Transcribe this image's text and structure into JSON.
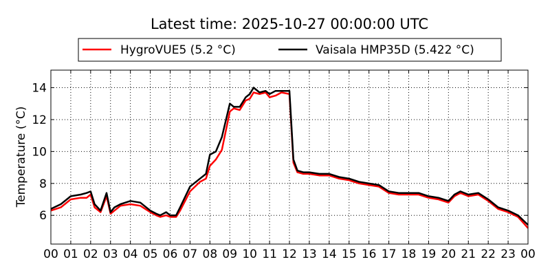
{
  "chart_data": {
    "type": "line",
    "title": "Latest time: 2025-10-27 00:00:00 UTC",
    "xlabel": "",
    "ylabel": "Temperature (°C)",
    "xlim": [
      0,
      24
    ],
    "ylim": [
      4.2,
      15.1
    ],
    "grid": true,
    "legend_position": "top-center",
    "x_tick_labels": [
      "00",
      "01",
      "02",
      "03",
      "04",
      "05",
      "06",
      "07",
      "08",
      "09",
      "10",
      "11",
      "12",
      "13",
      "14",
      "15",
      "16",
      "17",
      "18",
      "19",
      "20",
      "21",
      "22",
      "23",
      "00"
    ],
    "y_ticks": [
      6,
      8,
      10,
      12,
      14
    ],
    "x_hours": [
      0,
      0.5,
      1,
      1.5,
      1.8,
      2,
      2.2,
      2.5,
      2.8,
      3,
      3.2,
      3.5,
      4,
      4.5,
      5,
      5.3,
      5.5,
      5.8,
      6,
      6.3,
      6.5,
      7,
      7.5,
      7.8,
      8,
      8.3,
      8.6,
      9,
      9.2,
      9.5,
      9.8,
      10,
      10.2,
      10.5,
      10.8,
      11,
      11.3,
      11.6,
      12,
      12.2,
      12.4,
      12.7,
      13,
      13.5,
      14,
      14.5,
      15,
      15.5,
      16,
      16.5,
      17,
      17.5,
      18,
      18.5,
      19,
      19.5,
      20,
      20.3,
      20.6,
      21,
      21.5,
      22,
      22.5,
      23,
      23.5,
      24
    ],
    "series": [
      {
        "name": "HygroVUE5 (5.2 °C)",
        "color": "#ff0000",
        "values": [
          6.3,
          6.5,
          7.0,
          7.1,
          7.1,
          7.3,
          6.5,
          6.2,
          7.2,
          6.1,
          6.3,
          6.6,
          6.7,
          6.6,
          6.2,
          6.0,
          5.9,
          6.0,
          5.9,
          5.9,
          6.3,
          7.5,
          8.1,
          8.3,
          9.1,
          9.5,
          10.1,
          12.5,
          12.7,
          12.6,
          13.2,
          13.3,
          13.7,
          13.6,
          13.7,
          13.4,
          13.5,
          13.7,
          13.6,
          9.3,
          8.7,
          8.6,
          8.6,
          8.5,
          8.5,
          8.3,
          8.2,
          8.0,
          7.9,
          7.8,
          7.4,
          7.3,
          7.3,
          7.3,
          7.1,
          7.0,
          6.8,
          7.2,
          7.4,
          7.2,
          7.3,
          6.9,
          6.4,
          6.2,
          5.9,
          5.2
        ]
      },
      {
        "name": "Vaisala HMP35D (5.422 °C)",
        "color": "#000000",
        "values": [
          6.4,
          6.7,
          7.2,
          7.3,
          7.4,
          7.5,
          6.7,
          6.3,
          7.4,
          6.2,
          6.5,
          6.7,
          6.9,
          6.8,
          6.3,
          6.1,
          6.0,
          6.2,
          6.0,
          6.0,
          6.5,
          7.8,
          8.3,
          8.6,
          9.8,
          10.0,
          10.9,
          13.0,
          12.8,
          12.8,
          13.4,
          13.6,
          14.0,
          13.7,
          13.8,
          13.6,
          13.8,
          13.8,
          13.8,
          9.5,
          8.8,
          8.7,
          8.7,
          8.6,
          8.6,
          8.4,
          8.3,
          8.1,
          8.0,
          7.9,
          7.5,
          7.4,
          7.4,
          7.4,
          7.2,
          7.1,
          6.9,
          7.3,
          7.5,
          7.3,
          7.4,
          7.0,
          6.5,
          6.3,
          6.0,
          5.4
        ]
      }
    ]
  }
}
